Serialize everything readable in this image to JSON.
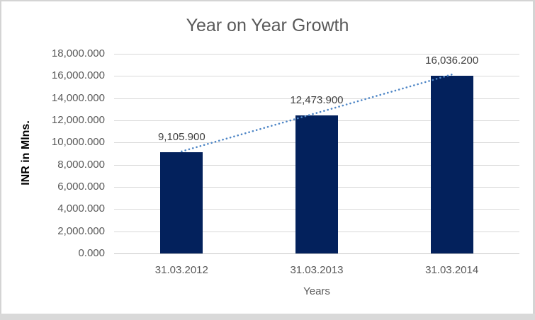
{
  "chart_data": {
    "type": "bar",
    "title": "Year on Year Growth",
    "xlabel": "Years",
    "ylabel": "INR in Mlns.",
    "categories": [
      "31.03.2012",
      "31.03.2013",
      "31.03.2014"
    ],
    "values": [
      9105.9,
      12473.9,
      16036.2
    ],
    "data_labels": [
      "9,105.900",
      "12,473.900",
      "16,036.200"
    ],
    "ylim": [
      0,
      18000
    ],
    "y_ticks": {
      "values": [
        0,
        2000,
        4000,
        6000,
        8000,
        10000,
        12000,
        14000,
        16000,
        18000
      ],
      "labels": [
        "0.000",
        "2,000.000",
        "4,000.000",
        "6,000.000",
        "8,000.000",
        "10,000.000",
        "12,000.000",
        "14,000.000",
        "16,000.000",
        "18,000.000"
      ]
    },
    "grid": true,
    "legend": "none",
    "trendline": {
      "type": "linear",
      "style": "dotted"
    },
    "colors": {
      "bar": "#03215c",
      "trendline": "#4e86c6",
      "title_text": "#595959",
      "axis_text": "#595959",
      "data_label_text": "#404040",
      "gridline": "#d9d9d9"
    }
  }
}
